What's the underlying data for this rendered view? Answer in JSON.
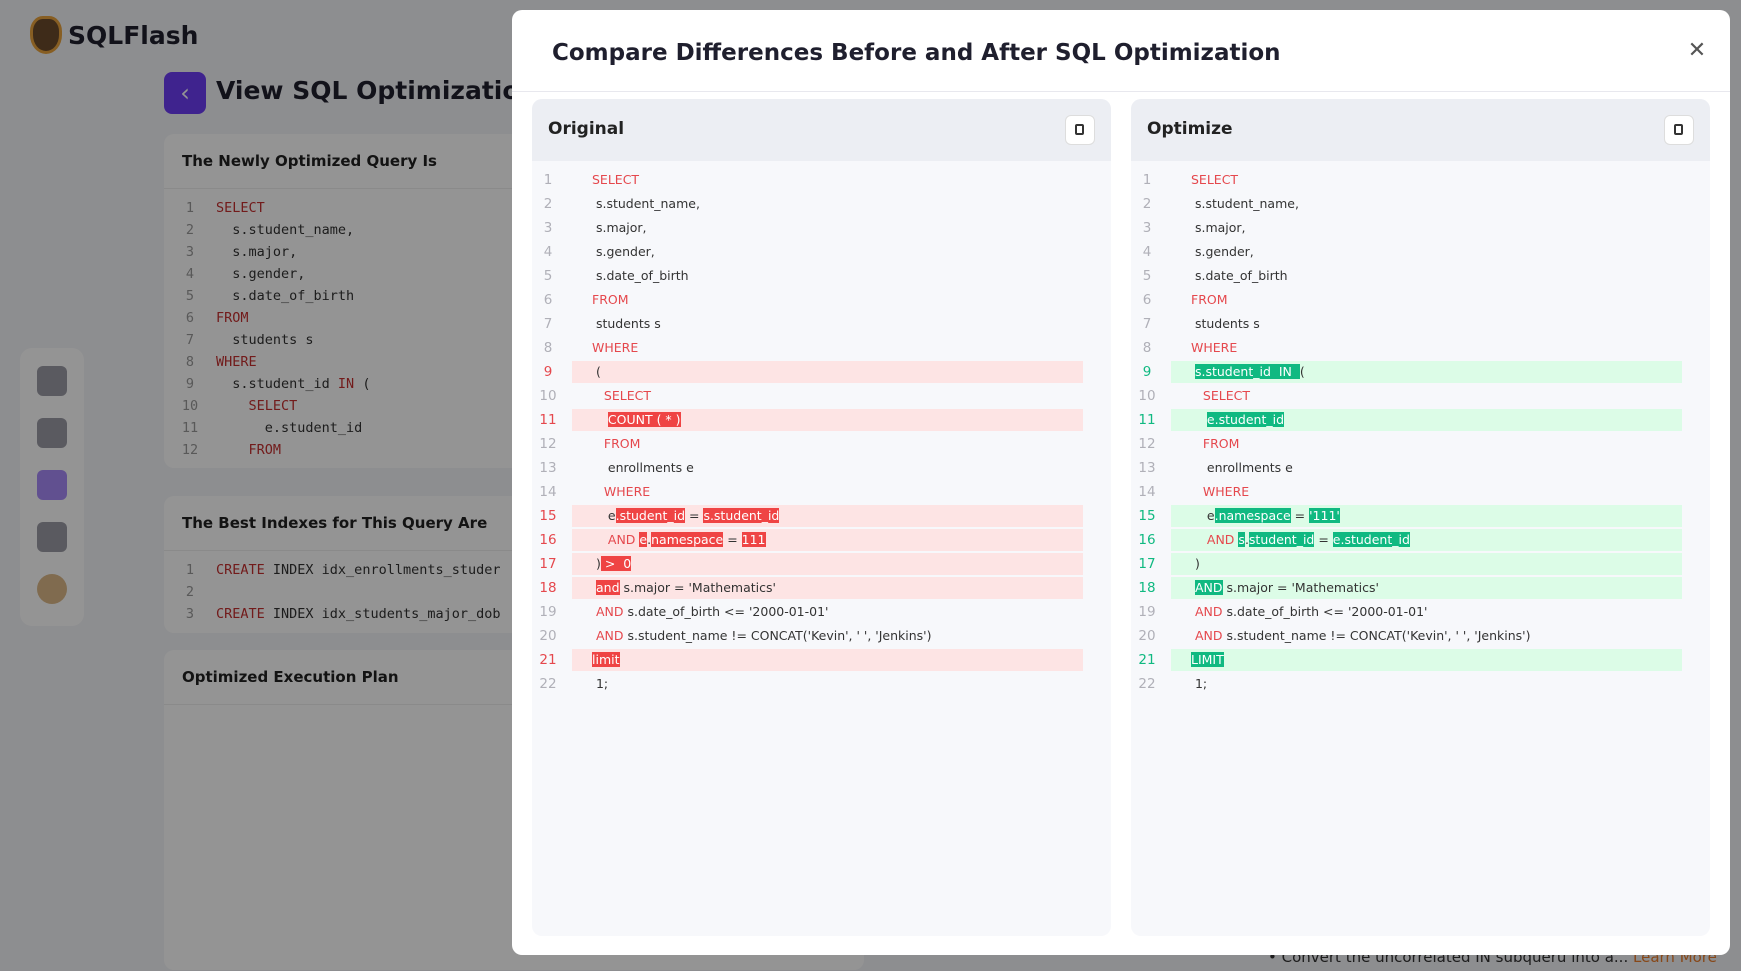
{
  "app": {
    "logo": "SQLFlash",
    "page_title": "View SQL Optimization Res"
  },
  "cards": [
    {
      "title": "The Newly Optimized Query Is",
      "lines": [
        {
          "n": "1",
          "parts": [
            {
              "text": "SELECT",
              "style": "keyword"
            }
          ]
        },
        {
          "n": "2",
          "parts": [
            {
              "text": "  s.student_name,"
            }
          ]
        },
        {
          "n": "3",
          "parts": [
            {
              "text": "  s.major,"
            }
          ]
        },
        {
          "n": "4",
          "parts": [
            {
              "text": "  s.gender,"
            }
          ]
        },
        {
          "n": "5",
          "parts": [
            {
              "text": "  s.date_of_birth"
            }
          ]
        },
        {
          "n": "6",
          "parts": [
            {
              "text": "FROM",
              "style": "keyword"
            }
          ]
        },
        {
          "n": "7",
          "parts": [
            {
              "text": "  students s"
            }
          ]
        },
        {
          "n": "8",
          "parts": [
            {
              "text": "WHERE",
              "style": "keyword"
            }
          ]
        },
        {
          "n": "9",
          "parts": [
            {
              "text": "  s.student_id "
            },
            {
              "text": "IN",
              "style": "keyword"
            },
            {
              "text": " ("
            }
          ]
        },
        {
          "n": "10",
          "parts": [
            {
              "text": "    "
            },
            {
              "text": "SELECT",
              "style": "keyword"
            }
          ]
        },
        {
          "n": "11",
          "parts": [
            {
              "text": "      e.student_id"
            }
          ]
        },
        {
          "n": "12",
          "parts": [
            {
              "text": "    "
            },
            {
              "text": "FROM",
              "style": "keyword"
            }
          ]
        }
      ]
    },
    {
      "title": "The Best Indexes for This Query Are",
      "lines": [
        {
          "n": "1",
          "parts": [
            {
              "text": "CREATE",
              "style": "keyword"
            },
            {
              "text": " INDEX idx_enrollments_studer"
            }
          ]
        },
        {
          "n": "2",
          "parts": []
        },
        {
          "n": "3",
          "parts": [
            {
              "text": "CREATE",
              "style": "keyword"
            },
            {
              "text": " INDEX idx_students_major_dob"
            }
          ]
        }
      ]
    },
    {
      "title": "Optimized Execution Plan",
      "lines": []
    }
  ],
  "modal": {
    "title": "Compare Differences Before and After SQL Optimization",
    "panes": [
      {
        "title": "Original",
        "variant": "removed",
        "lines": [
          {
            "n": "1",
            "parts": [
              {
                "text": "SELECT",
                "style": "keyword"
              }
            ]
          },
          {
            "n": "2",
            "parts": [
              {
                "text": " s.student_name,"
              }
            ]
          },
          {
            "n": "3",
            "parts": [
              {
                "text": " s.major,"
              }
            ]
          },
          {
            "n": "4",
            "parts": [
              {
                "text": " s.gender,"
              }
            ]
          },
          {
            "n": "5",
            "parts": [
              {
                "text": " s.date_of_birth"
              }
            ]
          },
          {
            "n": "6",
            "parts": [
              {
                "text": "FROM",
                "style": "keyword"
              }
            ]
          },
          {
            "n": "7",
            "parts": [
              {
                "text": " students s"
              }
            ]
          },
          {
            "n": "8",
            "parts": [
              {
                "text": "WHERE",
                "style": "keyword"
              }
            ]
          },
          {
            "n": "9",
            "changed": true,
            "parts": [
              {
                "text": " ("
              }
            ]
          },
          {
            "n": "10",
            "parts": [
              {
                "text": "   "
              },
              {
                "text": "SELECT",
                "style": "keyword"
              }
            ]
          },
          {
            "n": "11",
            "changed": true,
            "parts": [
              {
                "text": "    "
              },
              {
                "text": "COUNT ( * )",
                "style": "highlight"
              }
            ]
          },
          {
            "n": "12",
            "parts": [
              {
                "text": "   "
              },
              {
                "text": "FROM",
                "style": "keyword"
              }
            ]
          },
          {
            "n": "13",
            "parts": [
              {
                "text": "    enrollments e"
              }
            ]
          },
          {
            "n": "14",
            "parts": [
              {
                "text": "   "
              },
              {
                "text": "WHERE",
                "style": "keyword"
              }
            ]
          },
          {
            "n": "15",
            "changed": true,
            "parts": [
              {
                "text": "    e"
              },
              {
                "text": ".student_id",
                "style": "highlight"
              },
              {
                "text": " = "
              },
              {
                "text": "s.student_id",
                "style": "highlight"
              }
            ]
          },
          {
            "n": "16",
            "changed": true,
            "parts": [
              {
                "text": "    "
              },
              {
                "text": "AND",
                "style": "keyword"
              },
              {
                "text": " "
              },
              {
                "text": "e",
                "style": "highlight"
              },
              {
                "text": "."
              },
              {
                "text": "namespace",
                "style": "highlight"
              },
              {
                "text": " = "
              },
              {
                "text": "111",
                "style": "highlight"
              }
            ]
          },
          {
            "n": "17",
            "changed": true,
            "parts": [
              {
                "text": " )"
              },
              {
                "text": " >  0",
                "style": "highlight"
              }
            ]
          },
          {
            "n": "18",
            "changed": true,
            "parts": [
              {
                "text": " "
              },
              {
                "text": "and",
                "style": "highlight"
              },
              {
                "text": " s.major = 'Mathematics'"
              }
            ]
          },
          {
            "n": "19",
            "parts": [
              {
                "text": " "
              },
              {
                "text": "AND",
                "style": "keyword"
              },
              {
                "text": " s.date_of_birth <= '2000-01-01'"
              }
            ]
          },
          {
            "n": "20",
            "parts": [
              {
                "text": " "
              },
              {
                "text": "AND",
                "style": "keyword"
              },
              {
                "text": " s.student_name != CONCAT('Kevin', ' ', 'Jenkins')"
              }
            ]
          },
          {
            "n": "21",
            "changed": true,
            "parts": [
              {
                "text": "limit",
                "style": "highlight"
              }
            ]
          },
          {
            "n": "22",
            "parts": [
              {
                "text": " 1;"
              }
            ]
          }
        ]
      },
      {
        "title": "Optimize",
        "variant": "added",
        "lines": [
          {
            "n": "1",
            "parts": [
              {
                "text": "SELECT",
                "style": "keyword"
              }
            ]
          },
          {
            "n": "2",
            "parts": [
              {
                "text": " s.student_name,"
              }
            ]
          },
          {
            "n": "3",
            "parts": [
              {
                "text": " s.major,"
              }
            ]
          },
          {
            "n": "4",
            "parts": [
              {
                "text": " s.gender,"
              }
            ]
          },
          {
            "n": "5",
            "parts": [
              {
                "text": " s.date_of_birth"
              }
            ]
          },
          {
            "n": "6",
            "parts": [
              {
                "text": "FROM",
                "style": "keyword"
              }
            ]
          },
          {
            "n": "7",
            "parts": [
              {
                "text": " students s"
              }
            ]
          },
          {
            "n": "8",
            "parts": [
              {
                "text": "WHERE",
                "style": "keyword"
              }
            ]
          },
          {
            "n": "9",
            "changed": true,
            "parts": [
              {
                "text": " "
              },
              {
                "text": "s.student_id  IN  ",
                "style": "highlight"
              },
              {
                "text": "("
              }
            ]
          },
          {
            "n": "10",
            "parts": [
              {
                "text": "   "
              },
              {
                "text": "SELECT",
                "style": "keyword"
              }
            ]
          },
          {
            "n": "11",
            "changed": true,
            "parts": [
              {
                "text": "    "
              },
              {
                "text": "e.student_id",
                "style": "highlight"
              }
            ]
          },
          {
            "n": "12",
            "parts": [
              {
                "text": "   "
              },
              {
                "text": "FROM",
                "style": "keyword"
              }
            ]
          },
          {
            "n": "13",
            "parts": [
              {
                "text": "    enrollments e"
              }
            ]
          },
          {
            "n": "14",
            "parts": [
              {
                "text": "   "
              },
              {
                "text": "WHERE",
                "style": "keyword"
              }
            ]
          },
          {
            "n": "15",
            "changed": true,
            "parts": [
              {
                "text": "    e"
              },
              {
                "text": ".namespace",
                "style": "highlight"
              },
              {
                "text": " = "
              },
              {
                "text": "'111'",
                "style": "highlight"
              }
            ]
          },
          {
            "n": "16",
            "changed": true,
            "parts": [
              {
                "text": "    "
              },
              {
                "text": "AND",
                "style": "keyword"
              },
              {
                "text": " "
              },
              {
                "text": "s",
                "style": "highlight"
              },
              {
                "text": "."
              },
              {
                "text": "student_id",
                "style": "highlight"
              },
              {
                "text": " = "
              },
              {
                "text": "e.student_id",
                "style": "highlight"
              }
            ]
          },
          {
            "n": "17",
            "changed": true,
            "parts": [
              {
                "text": " )"
              }
            ]
          },
          {
            "n": "18",
            "changed": true,
            "parts": [
              {
                "text": " "
              },
              {
                "text": "AND",
                "style": "highlight"
              },
              {
                "text": " s.major = 'Mathematics'"
              }
            ]
          },
          {
            "n": "19",
            "parts": [
              {
                "text": " "
              },
              {
                "text": "AND",
                "style": "keyword"
              },
              {
                "text": " s.date_of_birth <= '2000-01-01'"
              }
            ]
          },
          {
            "n": "20",
            "parts": [
              {
                "text": " "
              },
              {
                "text": "AND",
                "style": "keyword"
              },
              {
                "text": " s.student_name != CONCAT('Kevin', ' ', 'Jenkins')"
              }
            ]
          },
          {
            "n": "21",
            "changed": true,
            "parts": [
              {
                "text": "LIMIT",
                "style": "highlight"
              }
            ]
          },
          {
            "n": "22",
            "parts": [
              {
                "text": " 1;"
              }
            ]
          }
        ]
      }
    ]
  },
  "footer": {
    "bullet": "Convert the uncorrelated IN subqueru into a...",
    "link": "Learn More"
  }
}
